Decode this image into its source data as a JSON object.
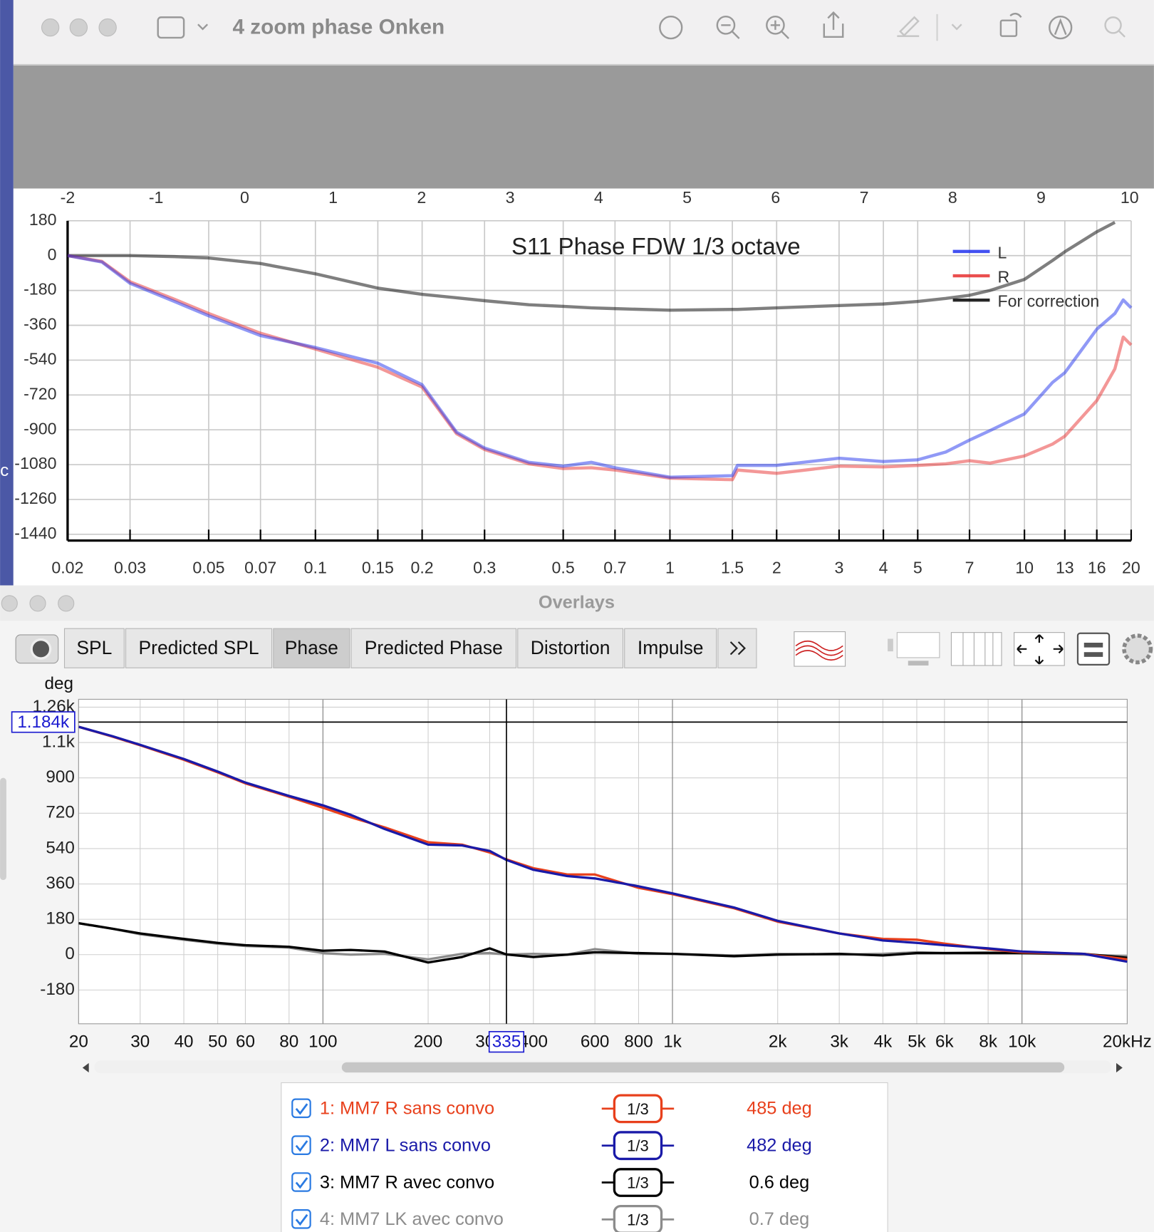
{
  "desktop_fragment": "c",
  "viewer": {
    "title": "4 zoom phase Onken"
  },
  "overlays": {
    "title": "Overlays",
    "tabs": [
      "SPL",
      "Predicted SPL",
      "Phase",
      "Predicted Phase",
      "Distortion",
      "Impulse"
    ],
    "selected_tab": 2
  },
  "chart_data": [
    {
      "type": "line",
      "title": "S11  Phase FDW 1/3 octave",
      "xscale": "log",
      "grid": true,
      "legend": "upper right",
      "xlim": [
        0.02,
        20
      ],
      "xticks": [
        0.02,
        0.03,
        0.05,
        0.07,
        0.1,
        0.15,
        0.2,
        0.3,
        0.5,
        0.7,
        1,
        1.5,
        2,
        3,
        4,
        5,
        7,
        10,
        13,
        16,
        20
      ],
      "x2lim": [
        -2,
        10
      ],
      "x2ticks": [
        -2,
        -1,
        0,
        1,
        2,
        3,
        4,
        5,
        6,
        7,
        8,
        9,
        10
      ],
      "ylim": [
        -1440,
        180
      ],
      "yticks": [
        180,
        0,
        -180,
        -360,
        -540,
        -720,
        -900,
        -1080,
        -1260,
        -1440
      ],
      "x": [
        0.02,
        0.025,
        0.03,
        0.04,
        0.05,
        0.07,
        0.1,
        0.15,
        0.2,
        0.25,
        0.3,
        0.4,
        0.5,
        0.6,
        0.7,
        1,
        1.5,
        1.55,
        2,
        3,
        4,
        5,
        6,
        7,
        8,
        10,
        12,
        13,
        16,
        18,
        19,
        20
      ],
      "series": [
        {
          "name": "L",
          "color": "#2233ee",
          "values": [
            0,
            -33,
            -143,
            -237,
            -311,
            -413,
            -475,
            -556,
            -667,
            -912,
            -994,
            -1068,
            -1088,
            -1068,
            -1096,
            -1145,
            -1137,
            -1084,
            -1084,
            -1047,
            -1064,
            -1055,
            -1015,
            -953,
            -904,
            -818,
            -655,
            -605,
            -380,
            -299,
            -229,
            -270
          ]
        },
        {
          "name": "R",
          "color": "#e83030",
          "values": [
            0,
            -30,
            -135,
            -225,
            -299,
            -401,
            -483,
            -577,
            -679,
            -920,
            -1002,
            -1076,
            -1100,
            -1096,
            -1108,
            -1150,
            -1158,
            -1108,
            -1125,
            -1088,
            -1092,
            -1084,
            -1076,
            -1060,
            -1072,
            -1035,
            -974,
            -933,
            -749,
            -585,
            -421,
            -462
          ]
        },
        {
          "name": "For correction",
          "color": "#000000",
          "values": [
            0,
            0,
            0,
            -5,
            -12,
            -41,
            -94,
            -168,
            -200,
            -218,
            -233,
            -254,
            -262,
            -270,
            -274,
            -282,
            -278,
            -278,
            -270,
            -258,
            -250,
            -237,
            -221,
            -205,
            -180,
            -123,
            -25,
            20,
            123,
            172,
            null,
            null
          ]
        }
      ]
    },
    {
      "type": "line",
      "y_label": "deg",
      "xscale": "log",
      "grid": true,
      "xlim": [
        20,
        20000
      ],
      "xticks": [
        20,
        30,
        40,
        50,
        60,
        80,
        100,
        200,
        300,
        400,
        600,
        800,
        {
          "value": 1000,
          "label": "1k"
        },
        {
          "value": 2000,
          "label": "2k"
        },
        {
          "value": 3000,
          "label": "3k"
        },
        {
          "value": 4000,
          "label": "4k"
        },
        {
          "value": 5000,
          "label": "5k"
        },
        {
          "value": 6000,
          "label": "6k"
        },
        {
          "value": 8000,
          "label": "8k"
        },
        {
          "value": 10000,
          "label": "10k"
        },
        {
          "value": 20000,
          "label": "20kHz"
        }
      ],
      "ylim": [
        -352,
        1300
      ],
      "yticks": [
        -180,
        0,
        180,
        360,
        540,
        720,
        900,
        {
          "value": 1080,
          "label": "1.1k"
        },
        {
          "value": 1260,
          "label": "1.26k"
        }
      ],
      "cursor": {
        "x": 335,
        "y": {
          "value": 1184,
          "label": "1.184k"
        }
      },
      "x": [
        20,
        25,
        30,
        40,
        50,
        60,
        80,
        100,
        120,
        150,
        200,
        250,
        300,
        335,
        400,
        500,
        600,
        800,
        1000,
        1500,
        2000,
        3000,
        4000,
        5000,
        6000,
        8000,
        10000,
        15000,
        20000
      ],
      "series": [
        {
          "name": "1: MM7 R sans convo",
          "color": "#e8401c",
          "smoothing": "1/3",
          "readout": "485 deg",
          "values": [
            1160,
            1110,
            1066,
            992,
            928,
            872,
            804,
            748,
            700,
            648,
            572,
            560,
            520,
            485,
            440,
            408,
            408,
            340,
            308,
            236,
            168,
            108,
            80,
            76,
            56,
            28,
            12,
            4,
            -24
          ]
        },
        {
          "name": "2: MM7 L sans convo",
          "color": "#1a1aa8",
          "smoothing": "1/3",
          "readout": "482 deg",
          "values": [
            1160,
            1112,
            1068,
            996,
            932,
            876,
            808,
            760,
            712,
            640,
            560,
            556,
            528,
            482,
            432,
            400,
            388,
            348,
            312,
            240,
            172,
            108,
            72,
            60,
            48,
            32,
            16,
            4,
            -36
          ]
        },
        {
          "name": "3: MM7 R avec convo",
          "color": "#000000",
          "smoothing": "1/3",
          "readout": "0.6 deg",
          "values": [
            160,
            132,
            108,
            80,
            60,
            48,
            40,
            20,
            24,
            16,
            -40,
            -12,
            32,
            0.6,
            -12,
            0,
            12,
            8,
            4,
            -8,
            0,
            4,
            -4,
            8,
            8,
            8,
            8,
            4,
            -16
          ]
        },
        {
          "name": "4: MM7 LK avec convo",
          "color": "#8c8c8c",
          "smoothing": "1/3",
          "readout": "0.7 deg",
          "values": [
            160,
            132,
            104,
            76,
            56,
            44,
            36,
            8,
            0,
            4,
            -24,
            4,
            8,
            0.7,
            4,
            0,
            28,
            4,
            4,
            -4,
            4,
            0,
            4,
            12,
            8,
            12,
            8,
            0,
            -8
          ]
        }
      ]
    }
  ]
}
